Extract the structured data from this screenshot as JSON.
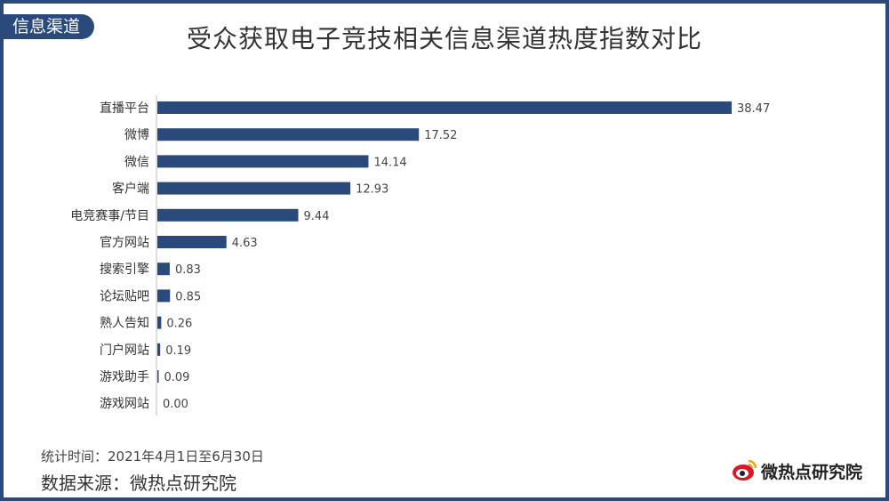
{
  "header": {
    "tag": "信息渠道",
    "title": "受众获取电子竞技相关信息渠道热度指数对比"
  },
  "footer": {
    "period": "统计时间：2021年4月1日至6月30日",
    "source": "数据来源：微热点研究院",
    "logo_text": "微热点研究院"
  },
  "colors": {
    "bar": "#2b4a7c",
    "frame": "#2b4a7c",
    "logo_red": "#d7192a"
  },
  "chart_data": {
    "type": "bar",
    "orientation": "horizontal",
    "title": "受众获取电子竞技相关信息渠道热度指数对比",
    "categories": [
      "直播平台",
      "微博",
      "微信",
      "客户端",
      "电竞赛事/节目",
      "官方网站",
      "搜索引擎",
      "论坛贴吧",
      "熟人告知",
      "门户网站",
      "游戏助手",
      "游戏网站"
    ],
    "values": [
      38.47,
      17.52,
      14.14,
      12.93,
      9.44,
      4.63,
      0.83,
      0.85,
      0.26,
      0.19,
      0.09,
      0.0
    ],
    "value_labels": [
      "38.47",
      "17.52",
      "14.14",
      "12.93",
      "9.44",
      "4.63",
      "0.83",
      "0.85",
      "0.26",
      "0.19",
      "0.09",
      "0.00"
    ],
    "xlim": [
      0,
      38.47
    ],
    "grid": false,
    "legend": "none"
  }
}
